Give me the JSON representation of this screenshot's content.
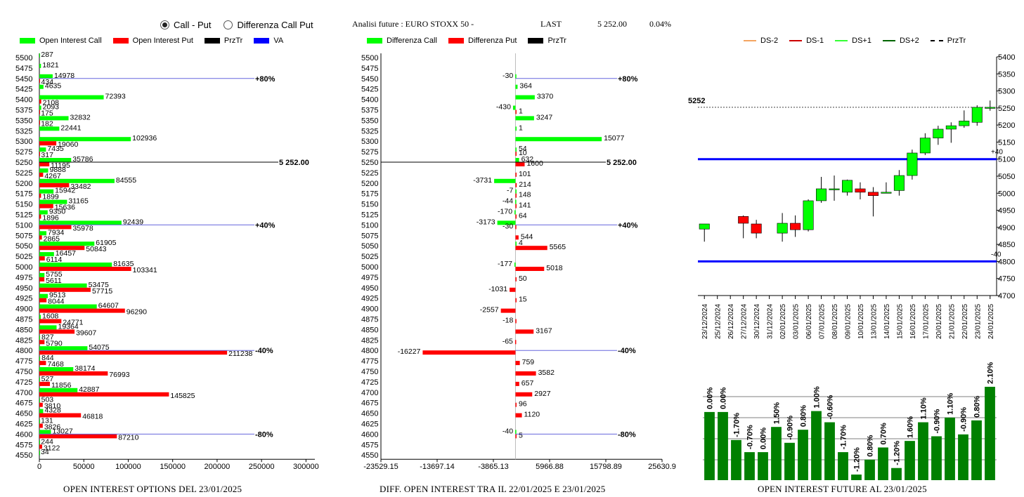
{
  "radio": {
    "call_put": "Call - Put",
    "diff_call_put": "Differenza Call Put",
    "selected": "call_put"
  },
  "header": {
    "title": "Analisi future : EURO STOXX 50 -",
    "last_label": "LAST",
    "last_value": "5 252.00",
    "change": "0.04%"
  },
  "colors": {
    "call": "#00ff00",
    "put": "#ff0000",
    "strike": "#000000",
    "va": "#0000ff",
    "ref": "#6666dd",
    "fut_bar": "#008000",
    "ds_minus2": "#f4a460",
    "ds_minus1": "#cc0000",
    "ds_plus1": "#33ff33",
    "ds_plus2": "#006400"
  },
  "chart_data": [
    {
      "type": "bar",
      "orientation": "horizontal",
      "caption": "OPEN INTEREST OPTIONS DEL 23/01/2025",
      "legend": [
        "Open Interest Call",
        "Open Interest Put",
        "PrzTr",
        "VA"
      ],
      "categories": [
        "5500",
        "5475",
        "5450",
        "5425",
        "5400",
        "5375",
        "5350",
        "5325",
        "5300",
        "5275",
        "5250",
        "5225",
        "5200",
        "5175",
        "5150",
        "5125",
        "5100",
        "5075",
        "5050",
        "5025",
        "5000",
        "4975",
        "4950",
        "4925",
        "4900",
        "4875",
        "4850",
        "4825",
        "4800",
        "4775",
        "4750",
        "4725",
        "4700",
        "4675",
        "4650",
        "4625",
        "4600",
        "4575",
        "4550"
      ],
      "series": [
        {
          "name": "Open Interest Call",
          "values": [
            287,
            1821,
            14978,
            4635,
            72393,
            2093,
            32832,
            22441,
            102936,
            7435,
            35786,
            9888,
            84555,
            15942,
            31165,
            9350,
            92439,
            7934,
            61905,
            16457,
            81635,
            5755,
            53475,
            9513,
            64607,
            1608,
            19364,
            827,
            54075,
            844,
            38174,
            527,
            42887,
            503,
            4328,
            131,
            13027,
            244,
            34
          ]
        },
        {
          "name": "Open Interest Put",
          "values": [
            0,
            0,
            434,
            0,
            2108,
            175,
            182,
            0,
            19060,
            317,
            11195,
            4267,
            33482,
            1899,
            15636,
            1896,
            35978,
            2865,
            50843,
            6114,
            103341,
            5611,
            57715,
            8044,
            96290,
            24771,
            39607,
            5790,
            211238,
            7468,
            76993,
            11856,
            145825,
            3810,
            46818,
            3826,
            87210,
            3122,
            0
          ]
        }
      ],
      "xticks": [
        "0",
        "50000",
        "100000",
        "150000",
        "200000",
        "250000",
        "300000"
      ],
      "xlim": [
        0,
        310000
      ],
      "ref_lines": [
        {
          "strike": "5450",
          "label": "+80%"
        },
        {
          "strike": "5250",
          "label": "5 252.00"
        },
        {
          "strike": "5100",
          "label": "+40%"
        },
        {
          "strike": "4800",
          "label": "-40%"
        },
        {
          "strike": "4600",
          "label": "-80%"
        }
      ]
    },
    {
      "type": "bar",
      "orientation": "horizontal",
      "caption": "DIFF. OPEN INTEREST TRA IL 22/01/2025 E 23/01/2025",
      "legend": [
        "Differenza Call",
        "Differenza Put",
        "PrzTr"
      ],
      "categories": [
        "5500",
        "5475",
        "5450",
        "5425",
        "5400",
        "5375",
        "5350",
        "5325",
        "5300",
        "5275",
        "5250",
        "5225",
        "5200",
        "5175",
        "5150",
        "5125",
        "5100",
        "5075",
        "5050",
        "5025",
        "5000",
        "4975",
        "4950",
        "4925",
        "4900",
        "4875",
        "4850",
        "4825",
        "4800",
        "4775",
        "4750",
        "4725",
        "4700",
        "4675",
        "4650",
        "4625",
        "4600",
        "4575",
        "4550"
      ],
      "series": [
        {
          "name": "Differenza Call",
          "values": [
            null,
            null,
            -30,
            364,
            3370,
            -430,
            3247,
            1,
            15077,
            54,
            632,
            null,
            -3731,
            -7,
            -44,
            -170,
            -3173,
            null,
            4,
            null,
            -177,
            null,
            null,
            null,
            null,
            null,
            null,
            null,
            null,
            null,
            null,
            null,
            null,
            null,
            null,
            null,
            -40,
            null,
            null
          ]
        },
        {
          "name": "Differenza Put",
          "values": [
            null,
            null,
            null,
            null,
            null,
            1,
            null,
            null,
            null,
            10,
            1600,
            101,
            214,
            148,
            141,
            64,
            -30,
            544,
            5565,
            null,
            5018,
            50,
            -1031,
            15,
            -2557,
            -18,
            3167,
            -65,
            -16227,
            759,
            3582,
            657,
            2927,
            96,
            1120,
            null,
            5,
            null,
            null
          ]
        }
      ],
      "xticks": [
        "-23529.15",
        "-13697.14",
        "-3865.13",
        "5966.88",
        "15798.89",
        "25630.9"
      ],
      "xlim": [
        -23529.15,
        25630.9
      ],
      "ref_lines": [
        {
          "strike": "5450",
          "label": "+80%"
        },
        {
          "strike": "5250",
          "label": "5 252.00"
        },
        {
          "strike": "5100",
          "label": "+40%"
        },
        {
          "strike": "4800",
          "label": "-40%"
        },
        {
          "strike": "4600",
          "label": "-80%"
        }
      ]
    },
    {
      "type": "candlestick",
      "legend": [
        "DS-2",
        "DS-1",
        "DS+1",
        "DS+2",
        "PrzTr"
      ],
      "dates": [
        "23/12/2024",
        "25/12/2024",
        "26/12/2024",
        "27/12/2024",
        "30/12/2024",
        "31/12/2024",
        "02/01/2025",
        "03/01/2025",
        "06/01/2025",
        "07/01/2025",
        "08/01/2025",
        "09/01/2025",
        "10/01/2025",
        "13/01/2025",
        "14/01/2025",
        "15/01/2025",
        "16/01/2025",
        "17/01/2025",
        "20/01/2025",
        "21/01/2025",
        "22/01/2025",
        "23/01/2025",
        "24/01/2025"
      ],
      "candles": [
        {
          "o": 4895,
          "h": 4910,
          "l": 4858,
          "c": 4910
        },
        null,
        null,
        {
          "o": 4932,
          "h": 4935,
          "l": 4868,
          "c": 4912
        },
        {
          "o": 4910,
          "h": 4922,
          "l": 4868,
          "c": 4883
        },
        null,
        {
          "o": 4883,
          "h": 4942,
          "l": 4858,
          "c": 4912
        },
        {
          "o": 4912,
          "h": 4935,
          "l": 4872,
          "c": 4893
        },
        {
          "o": 4893,
          "h": 4982,
          "l": 4888,
          "c": 4978
        },
        {
          "o": 4978,
          "h": 5048,
          "l": 4972,
          "c": 5013
        },
        {
          "o": 5013,
          "h": 5052,
          "l": 4978,
          "c": 5013
        },
        {
          "o": 5003,
          "h": 5040,
          "l": 4993,
          "c": 5038
        },
        {
          "o": 5013,
          "h": 5032,
          "l": 4982,
          "c": 5003
        },
        {
          "o": 5003,
          "h": 5018,
          "l": 4932,
          "c": 4993
        },
        {
          "o": 5003,
          "h": 5032,
          "l": 5000,
          "c": 5003
        },
        {
          "o": 5008,
          "h": 5068,
          "l": 4993,
          "c": 5052
        },
        {
          "o": 5052,
          "h": 5128,
          "l": 5040,
          "c": 5118
        },
        {
          "o": 5118,
          "h": 5176,
          "l": 5112,
          "c": 5162
        },
        {
          "o": 5162,
          "h": 5198,
          "l": 5142,
          "c": 5188
        },
        {
          "o": 5188,
          "h": 5208,
          "l": 5148,
          "c": 5198
        },
        {
          "o": 5198,
          "h": 5243,
          "l": 5192,
          "c": 5212
        },
        {
          "o": 5208,
          "h": 5258,
          "l": 5198,
          "c": 5252
        },
        {
          "o": 5250,
          "h": 5272,
          "l": 5242,
          "c": 5252
        }
      ],
      "yticks": [
        "5400",
        "5350",
        "5300",
        "5250",
        "5200",
        "5150",
        "5100",
        "5050",
        "5000",
        "4950",
        "4900",
        "4850",
        "4800",
        "4750",
        "4700"
      ],
      "ylim": [
        4700,
        5400
      ],
      "last_label": "5252",
      "bands": [
        {
          "value": 5100,
          "label": "+40"
        },
        {
          "value": 4800,
          "label": "-40"
        }
      ]
    },
    {
      "type": "bar",
      "caption": "OPEN INTEREST FUTURE AL 23/01/2025",
      "labels": [
        "0.00%",
        "0.00%",
        "-1.70%",
        "-0.70%",
        "0.00%",
        "1.50%",
        "-0.90%",
        "0.80%",
        "1.00%",
        "-0.60%",
        "-1.70%",
        "-1.20%",
        "0.80%",
        "0.70%",
        "-1.20%",
        "1.60%",
        "1.10%",
        "-0.90%",
        "1.10%",
        "-0.90%",
        "0.80%",
        "2.10%"
      ],
      "values": [
        0.0,
        0.0,
        -1.7,
        -0.7,
        0.0,
        1.5,
        -0.9,
        0.8,
        1.0,
        -0.6,
        -1.7,
        -1.2,
        0.8,
        0.7,
        -1.2,
        1.6,
        1.1,
        -0.9,
        1.1,
        -0.9,
        0.8,
        2.1
      ],
      "heights": [
        0.73,
        0.73,
        0.43,
        0.3,
        0.3,
        0.57,
        0.4,
        0.54,
        0.74,
        0.62,
        0.3,
        0.06,
        0.22,
        0.35,
        0.13,
        0.42,
        0.62,
        0.47,
        0.67,
        0.49,
        0.64,
        1.0
      ]
    }
  ]
}
